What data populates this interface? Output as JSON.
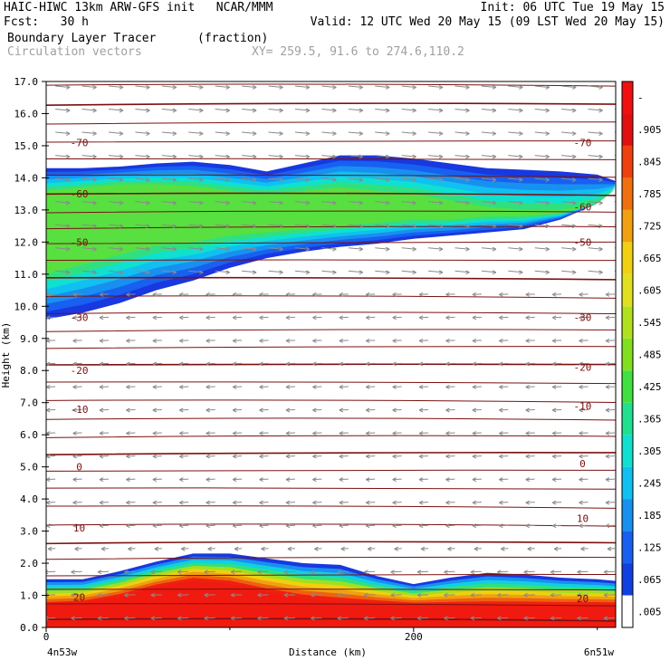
{
  "header": {
    "line1_left": "HAIC-HIWC 13km ARW-GFS init   NCAR/MMM",
    "line1_right": "Init: 06 UTC Tue 19 May 15",
    "line2_left": "Fcst:   30 h",
    "line2_right": "Valid: 12 UTC Wed 20 May 15 (09 LST Wed 20 May 15)",
    "line3_field": "Boundary Layer Tracer",
    "line3_units": "(fraction)",
    "line4_field": "Circulation vectors",
    "line4_xy": "XY= 259.5, 91.6 to 274.6,110.2"
  },
  "chart_data": {
    "type": "heatmap",
    "title": "Boundary Layer Tracer (fraction)",
    "xlabel": "Distance (km)",
    "ylabel": "Height (km)",
    "x_start_label": "4n53w",
    "x_end_label": "6n51w",
    "xlim": [
      0,
      310
    ],
    "ylim": [
      0,
      17
    ],
    "x_ticks": [
      0,
      200
    ],
    "y_ticks": [
      "0.0",
      "1.0",
      "2.0",
      "3.0",
      "4.0",
      "5.0",
      "6.0",
      "7.0",
      "8.0",
      "9.0",
      "10.0",
      "11.0",
      "12.0",
      "13.0",
      "14.0",
      "15.0",
      "16.0",
      "17.0"
    ],
    "colorbar_labels": [
      ".005",
      ".065",
      ".125",
      ".185",
      ".245",
      ".305",
      ".365",
      ".425",
      ".485",
      ".545",
      ".605",
      ".665",
      ".725",
      ".785",
      ".845",
      ".905",
      "-"
    ],
    "colorbar_colors": [
      "#ffffff",
      "#1040e0",
      "#1a60f0",
      "#1890f0",
      "#10c0f0",
      "#10e0d0",
      "#20e090",
      "#40e040",
      "#80e020",
      "#b0e020",
      "#e0e020",
      "#f0d010",
      "#f0a010",
      "#f07010",
      "#f04010",
      "#e01010",
      "#f01010"
    ],
    "contour_labels": {
      "left": [
        "-70",
        "-60",
        "-50",
        "-30",
        "-20",
        "-10",
        "0",
        "10",
        "20"
      ],
      "right": [
        "-70",
        "-60",
        "-50",
        "-30",
        "-20",
        "-10",
        "0",
        "10",
        "20"
      ]
    },
    "contour_label_heights": {
      "left": [
        15.1,
        13.5,
        12.0,
        9.65,
        8.0,
        6.8,
        5.0,
        3.1,
        0.95
      ],
      "right": [
        15.1,
        13.1,
        12.0,
        9.65,
        8.1,
        6.9,
        5.1,
        3.4,
        0.9
      ]
    },
    "temperature_line_heights": [
      0.25,
      0.7,
      1.15,
      1.6,
      2.15,
      2.65,
      3.2,
      3.75,
      4.3,
      4.85,
      5.4,
      5.95,
      6.5,
      7.05,
      7.6,
      8.15,
      8.7,
      9.25,
      9.8,
      10.3,
      10.85,
      11.4,
      11.95,
      12.45,
      12.95,
      13.5,
      14.05,
      14.55,
      15.1,
      15.7,
      16.3,
      16.9
    ],
    "upper_layer": {
      "x": [
        0,
        20,
        40,
        60,
        80,
        100,
        120,
        140,
        160,
        180,
        200,
        220,
        240,
        260,
        280,
        300,
        310
      ],
      "top": [
        14.3,
        14.3,
        14.35,
        14.45,
        14.5,
        14.4,
        14.2,
        14.45,
        14.7,
        14.7,
        14.6,
        14.45,
        14.3,
        14.25,
        14.2,
        14.1,
        13.9
      ],
      "bottom": [
        9.6,
        9.8,
        10.1,
        10.5,
        10.8,
        11.2,
        11.5,
        11.7,
        11.85,
        11.95,
        12.1,
        12.2,
        12.3,
        12.4,
        12.7,
        13.2,
        13.9
      ],
      "core_top": [
        13.6,
        13.7,
        13.8,
        13.8,
        13.75,
        13.6,
        13.5,
        13.6,
        13.7,
        13.6,
        13.5,
        13.3,
        13.1,
        13.0,
        13.0,
        13.2,
        13.6
      ],
      "core_bottom": [
        11.0,
        11.3,
        11.6,
        11.9,
        12.0,
        12.2,
        12.3,
        12.4,
        12.5,
        12.6,
        12.7,
        12.7,
        12.8,
        12.8,
        12.9,
        13.2,
        13.6
      ]
    },
    "lower_layer": {
      "x": [
        0,
        20,
        40,
        60,
        80,
        100,
        120,
        140,
        160,
        180,
        200,
        220,
        240,
        260,
        280,
        300,
        310
      ],
      "top": [
        1.5,
        1.5,
        1.75,
        2.05,
        2.3,
        2.3,
        2.15,
        2.0,
        1.95,
        1.6,
        1.35,
        1.55,
        1.7,
        1.65,
        1.55,
        1.5,
        1.45
      ],
      "red_top": [
        0.7,
        0.75,
        0.95,
        1.25,
        1.45,
        1.35,
        1.1,
        0.9,
        0.8,
        0.75,
        0.7,
        0.7,
        0.7,
        0.7,
        0.7,
        0.7,
        0.7
      ]
    }
  }
}
